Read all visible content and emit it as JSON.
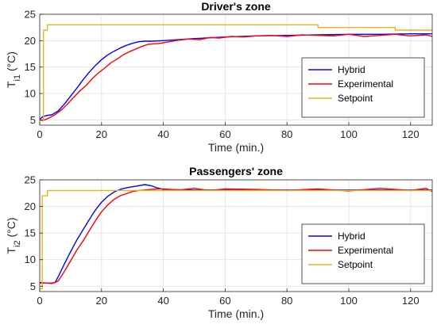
{
  "chart_data": [
    {
      "type": "line",
      "title": "Driver's zone",
      "xlabel": "Time (min.)",
      "ylabel_main": "T",
      "ylabel_sub": "i1",
      "ylabel_unit": " (°C)",
      "xlim": [
        0,
        127
      ],
      "ylim": [
        4,
        25
      ],
      "xticks": [
        0,
        20,
        40,
        60,
        80,
        100,
        120
      ],
      "yticks": [
        5,
        10,
        15,
        20,
        25
      ],
      "grid": true,
      "legend_position": "bottom-right",
      "series": [
        {
          "name": "Hybrid",
          "color": "#0000ff",
          "x": [
            0,
            1,
            2,
            4,
            6,
            8,
            10,
            12,
            14,
            16,
            18,
            20,
            22,
            24,
            26,
            28,
            30,
            32,
            34,
            36,
            40,
            50,
            60,
            70,
            80,
            90,
            100,
            110,
            120,
            127
          ],
          "y": [
            5.1,
            5.6,
            5.8,
            6.0,
            6.7,
            8.0,
            9.5,
            11.0,
            12.6,
            14.0,
            15.3,
            16.4,
            17.3,
            18.0,
            18.6,
            19.1,
            19.5,
            19.8,
            19.9,
            19.9,
            20.0,
            20.4,
            20.7,
            20.9,
            21.0,
            21.1,
            21.2,
            21.2,
            21.3,
            21.3
          ]
        },
        {
          "name": "Experimental",
          "color": "#ff0000",
          "x": [
            0,
            1,
            2,
            3,
            5,
            7,
            9,
            11,
            13,
            15,
            17,
            19,
            21,
            23,
            25,
            27,
            29,
            31,
            33,
            35,
            37,
            39,
            42,
            45,
            48,
            52,
            55,
            58,
            62,
            66,
            70,
            75,
            80,
            85,
            90,
            95,
            100,
            105,
            110,
            115,
            120,
            125,
            127
          ],
          "y": [
            5.0,
            4.9,
            5.1,
            5.4,
            6.0,
            6.9,
            8.0,
            9.3,
            10.5,
            11.5,
            12.8,
            13.9,
            14.8,
            15.8,
            16.5,
            17.3,
            17.9,
            18.4,
            18.9,
            19.3,
            19.4,
            19.5,
            19.8,
            20.1,
            20.3,
            20.2,
            20.6,
            20.5,
            20.8,
            20.7,
            20.9,
            21.0,
            20.8,
            21.1,
            21.0,
            20.9,
            21.2,
            20.8,
            21.0,
            21.2,
            20.9,
            21.1,
            20.8
          ]
        },
        {
          "name": "Setpoint",
          "color": "#edb120",
          "x": [
            0,
            1.2,
            1.2,
            2.5,
            2.5,
            90,
            90,
            115,
            115,
            127
          ],
          "y": [
            5.0,
            5.0,
            22.0,
            22.0,
            23.0,
            23.0,
            22.5,
            22.5,
            22.0,
            22.0
          ]
        }
      ]
    },
    {
      "type": "line",
      "title": "Passengers' zone",
      "xlabel": "Time (min.)",
      "ylabel_main": "T",
      "ylabel_sub": "i2",
      "ylabel_unit": " (°C)",
      "xlim": [
        0,
        127
      ],
      "ylim": [
        4,
        25
      ],
      "xticks": [
        0,
        20,
        40,
        60,
        80,
        100,
        120
      ],
      "yticks": [
        5,
        10,
        15,
        20,
        25
      ],
      "grid": true,
      "legend_position": "bottom-right",
      "series": [
        {
          "name": "Hybrid",
          "color": "#0000ff",
          "x": [
            0,
            2,
            4,
            5,
            6,
            8,
            10,
            12,
            14,
            16,
            18,
            20,
            22,
            24,
            26,
            28,
            30,
            32,
            34,
            36,
            38,
            40,
            50,
            60,
            80,
            100,
            120,
            127
          ],
          "y": [
            5.7,
            5.6,
            5.6,
            5.7,
            6.8,
            9.2,
            11.5,
            13.7,
            15.6,
            17.5,
            19.3,
            20.8,
            21.9,
            22.7,
            23.2,
            23.5,
            23.7,
            23.9,
            24.1,
            23.9,
            23.5,
            23.2,
            23.1,
            23.1,
            23.1,
            23.1,
            23.1,
            23.1
          ]
        },
        {
          "name": "Experimental",
          "color": "#ff0000",
          "x": [
            0,
            2,
            4,
            5,
            6,
            8,
            10,
            12,
            14,
            16,
            18,
            20,
            22,
            24,
            26,
            28,
            30,
            32,
            34,
            36,
            38,
            40,
            45,
            50,
            55,
            60,
            70,
            80,
            90,
            100,
            110,
            120,
            125,
            127
          ],
          "y": [
            5.6,
            5.6,
            5.5,
            5.7,
            6.0,
            7.8,
            9.8,
            11.8,
            13.5,
            15.4,
            17.3,
            19.0,
            20.3,
            21.3,
            22.0,
            22.4,
            22.8,
            23.0,
            23.1,
            23.2,
            23.3,
            23.3,
            23.1,
            23.4,
            23.0,
            23.3,
            23.2,
            23.0,
            23.3,
            22.9,
            23.4,
            23.0,
            23.4,
            22.8
          ]
        },
        {
          "name": "Setpoint",
          "color": "#edb120",
          "x": [
            0,
            0.8,
            0.8,
            2.5,
            2.5,
            127
          ],
          "y": [
            4.5,
            4.5,
            22.0,
            22.0,
            23.0,
            23.0
          ]
        }
      ]
    }
  ]
}
